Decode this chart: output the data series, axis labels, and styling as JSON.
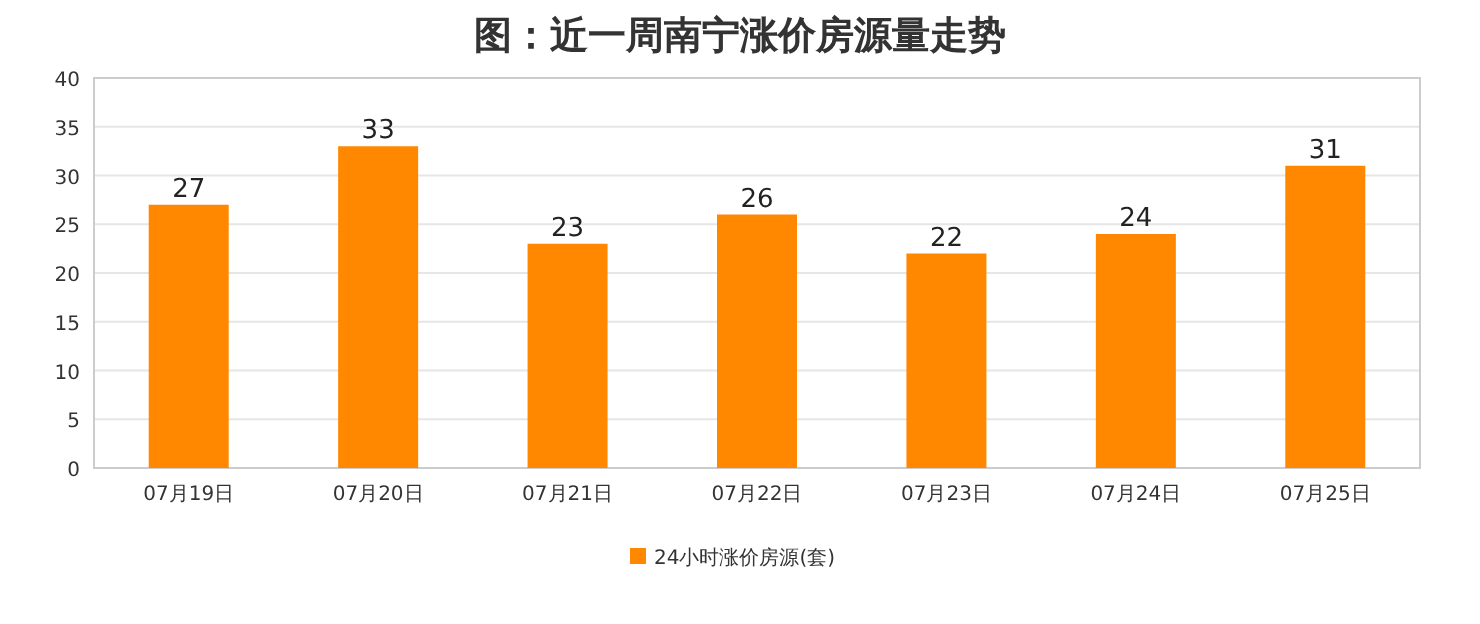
{
  "chart_data": {
    "type": "bar",
    "title": "图：近一周南宁涨价房源量走势",
    "categories": [
      "07月19日",
      "07月20日",
      "07月21日",
      "07月22日",
      "07月23日",
      "07月24日",
      "07月25日"
    ],
    "series": [
      {
        "name": "24小时涨价房源(套)",
        "color": "#ff8800",
        "values": [
          27,
          33,
          23,
          26,
          22,
          24,
          31
        ]
      }
    ],
    "ylim": [
      0,
      40
    ],
    "yticks": [
      0,
      5,
      10,
      15,
      20,
      25,
      30,
      35,
      40
    ],
    "grid": "y",
    "data_labels": true,
    "legend": "bottom"
  }
}
